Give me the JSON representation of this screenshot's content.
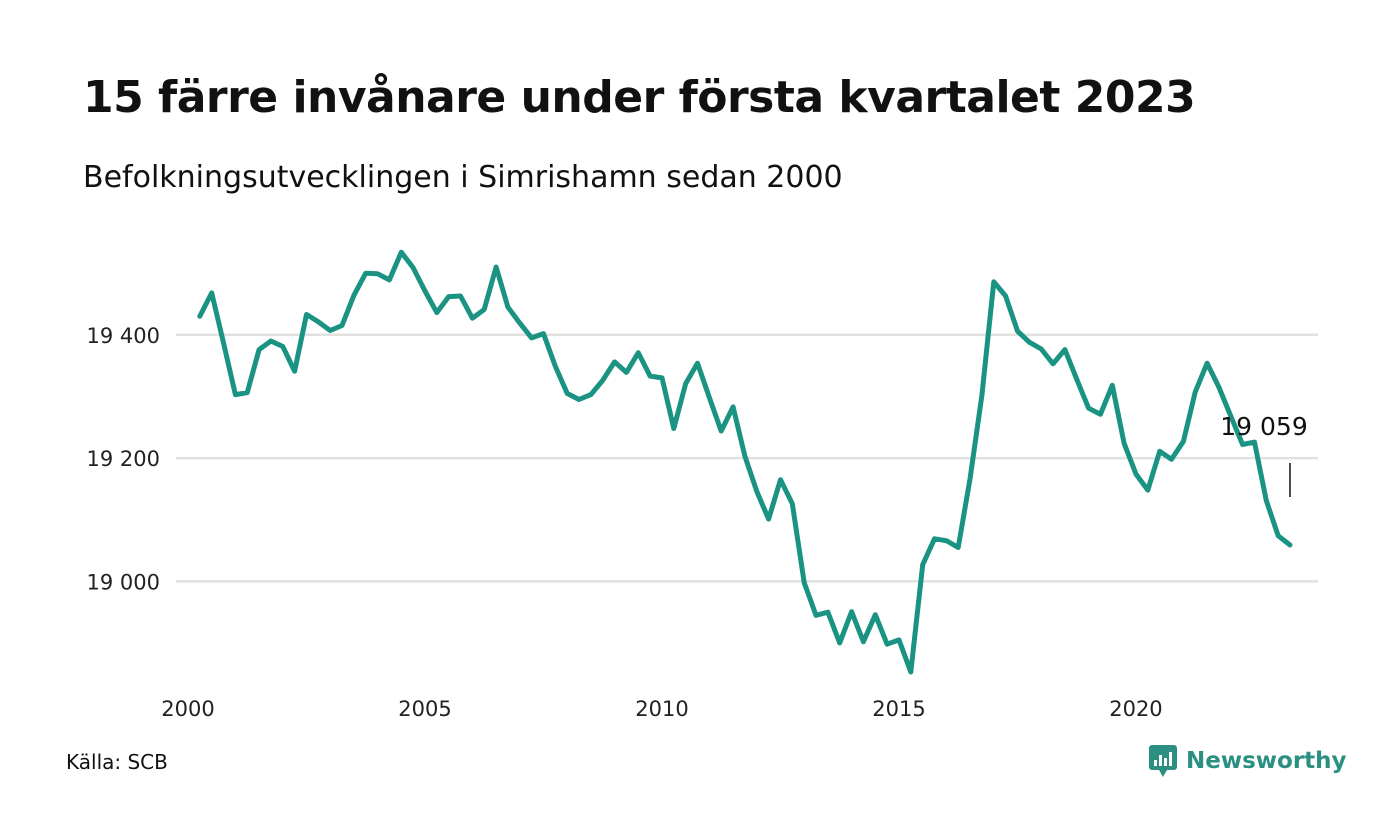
{
  "title": "15 färre invånare under första kvartalet 2023",
  "subtitle": "Befolkningsutvecklingen i Simrishamn sedan 2000",
  "source": "Källa: SCB",
  "brand": {
    "name": "Newsworthy",
    "icon": "newsworthy-logo-icon",
    "color": "#2b8f82"
  },
  "colors": {
    "line": "#1a9382",
    "grid": "#e1e1e1"
  },
  "chart_data": {
    "type": "line",
    "title": "15 färre invånare under första kvartalet 2023",
    "subtitle": "Befolkningsutvecklingen i Simrishamn sedan 2000",
    "xlabel": "",
    "ylabel": "",
    "x_ticks": [
      2000,
      2005,
      2010,
      2015,
      2020
    ],
    "x_tick_labels": [
      "2000",
      "2005",
      "2010",
      "2015",
      "2020"
    ],
    "y_ticks": [
      19000,
      19200,
      19400
    ],
    "y_tick_labels": [
      "19 000",
      "19 200",
      "19 400"
    ],
    "xlim": [
      2000,
      2023.25
    ],
    "ylim": [
      18840,
      19570
    ],
    "grid": "horizontal",
    "end_label": "19 059",
    "series": [
      {
        "x": [
          2000.25,
          2000.5,
          2000.75,
          2001.0,
          2001.25,
          2001.5,
          2001.75,
          2002.0,
          2002.25,
          2002.5,
          2002.75,
          2003.0,
          2003.25,
          2003.5,
          2003.75,
          2004.0,
          2004.25,
          2004.5,
          2004.75,
          2005.0,
          2005.25,
          2005.5,
          2005.75,
          2006.0,
          2006.25,
          2006.5,
          2006.75,
          2007.0,
          2007.25,
          2007.5,
          2007.75,
          2008.0,
          2008.25,
          2008.5,
          2008.75,
          2009.0,
          2009.25,
          2009.5,
          2009.75,
          2010.0,
          2010.25,
          2010.5,
          2010.75,
          2011.0,
          2011.25,
          2011.5,
          2011.75,
          2012.0,
          2012.25,
          2012.5,
          2012.75,
          2013.0,
          2013.25,
          2013.5,
          2013.75,
          2014.0,
          2014.25,
          2014.5,
          2014.75,
          2015.0,
          2015.25,
          2015.5,
          2015.75,
          2016.0,
          2016.25,
          2016.5,
          2016.75,
          2017.0,
          2017.25,
          2017.5,
          2017.75,
          2018.0,
          2018.25,
          2018.5,
          2018.75,
          2019.0,
          2019.25,
          2019.5,
          2019.75,
          2020.0,
          2020.25,
          2020.5,
          2020.75,
          2021.0,
          2021.25,
          2021.5,
          2021.75,
          2022.0,
          2022.25,
          2022.5,
          2022.75,
          2023.0,
          2023.25
        ],
        "y": [
          19430,
          19468,
          19387,
          19303,
          19306,
          19376,
          19390,
          19381,
          19341,
          19433,
          19421,
          19407,
          19415,
          19464,
          19500,
          19499,
          19489,
          19534,
          19509,
          19471,
          19436,
          19462,
          19463,
          19427,
          19441,
          19510,
          19445,
          19419,
          19395,
          19402,
          19349,
          19305,
          19295,
          19303,
          19326,
          19356,
          19339,
          19371,
          19333,
          19330,
          19248,
          19321,
          19354,
          19298,
          19244,
          19283,
          19203,
          19146,
          19101,
          19165,
          19126,
          18998,
          18945,
          18950,
          18900,
          18951,
          18902,
          18946,
          18898,
          18905,
          18853,
          19027,
          19069,
          19066,
          19055,
          19167,
          19302,
          19486,
          19463,
          19406,
          19388,
          19377,
          19353,
          19376,
          19328,
          19281,
          19271,
          19318,
          19224,
          19174,
          19148,
          19211,
          19198,
          19227,
          19307,
          19354,
          19315,
          19268,
          19222,
          19226,
          19131,
          19074,
          19059
        ]
      }
    ]
  }
}
